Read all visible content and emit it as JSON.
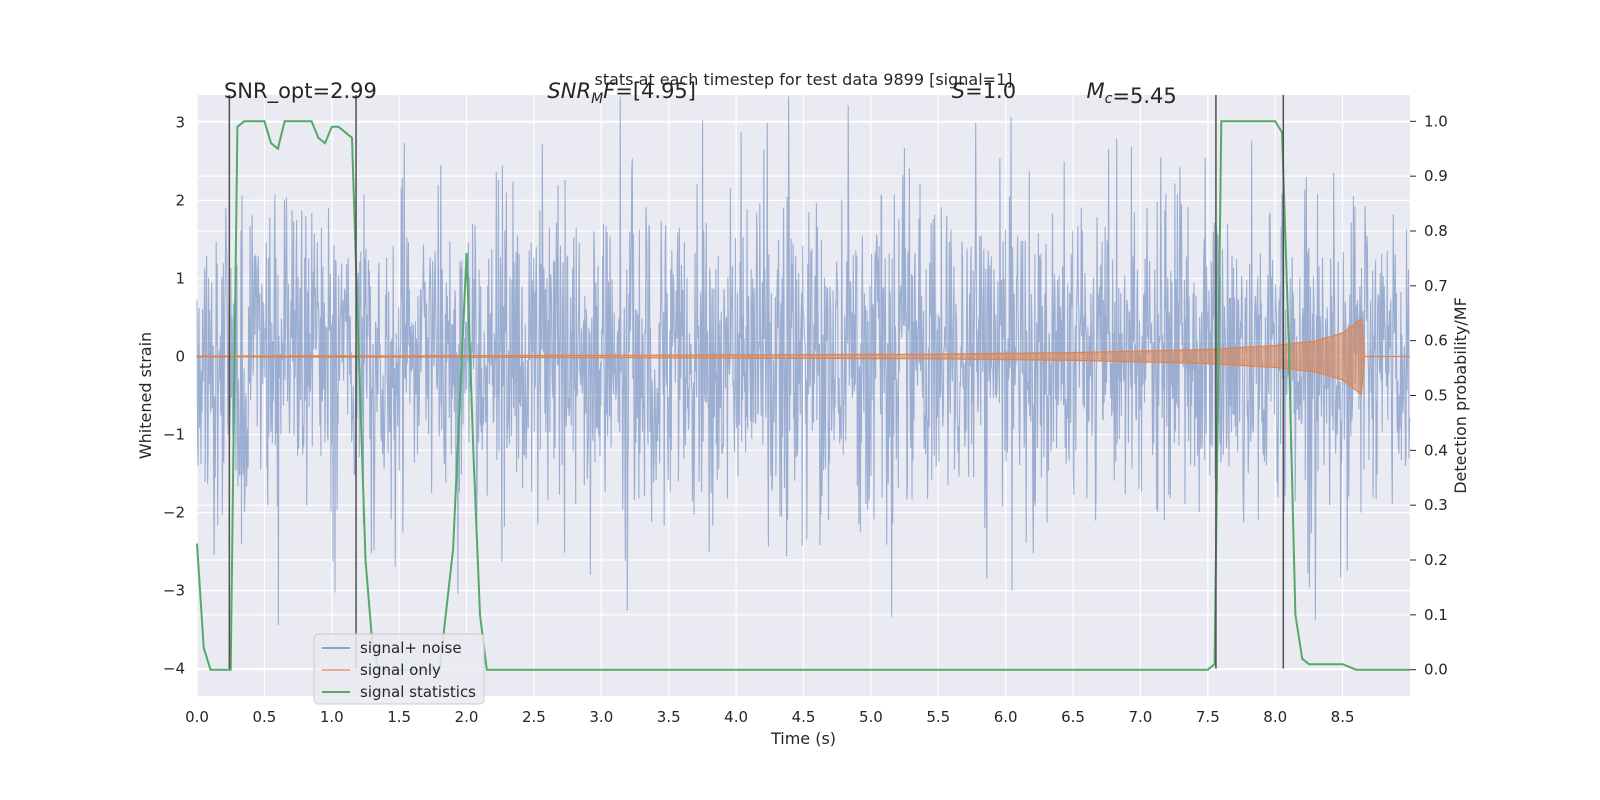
{
  "chart_data": {
    "type": "line",
    "title": "stats at each timestep for test data 9899 [signal=1]",
    "xlabel": "Time (s)",
    "ylabel": "Whitened strain",
    "y2label": "Detection probability/MF",
    "xlim": [
      0.0,
      9.0
    ],
    "ylim": [
      -4.35,
      3.35
    ],
    "y2lim": [
      -0.048,
      1.048
    ],
    "x_ticks": [
      0.0,
      0.5,
      1.0,
      1.5,
      2.0,
      2.5,
      3.0,
      3.5,
      4.0,
      4.5,
      5.0,
      5.5,
      6.0,
      6.5,
      7.0,
      7.5,
      8.0,
      8.5
    ],
    "x_tick_labels": [
      "0.0",
      "0.5",
      "1.0",
      "1.5",
      "2.0",
      "2.5",
      "3.0",
      "3.5",
      "4.0",
      "4.5",
      "5.0",
      "5.5",
      "6.0",
      "6.5",
      "7.0",
      "7.5",
      "8.0",
      "8.5"
    ],
    "y_ticks": [
      -4,
      -3,
      -2,
      -1,
      0,
      1,
      2,
      3
    ],
    "y_tick_labels": [
      "−4",
      "−3",
      "−2",
      "−1",
      "0",
      "1",
      "2",
      "3"
    ],
    "y2_ticks": [
      0.0,
      0.1,
      0.2,
      0.3,
      0.4,
      0.5,
      0.6,
      0.7,
      0.8,
      0.9,
      1.0
    ],
    "y2_tick_labels": [
      "0.0",
      "0.1",
      "0.2",
      "0.3",
      "0.4",
      "0.5",
      "0.6",
      "0.7",
      "0.8",
      "0.9",
      "1.0"
    ],
    "grid": true,
    "legend_position": "lower-left",
    "annotations": [
      {
        "text": "SNR_opt=2.99",
        "x": 0.2,
        "y": 3.4
      },
      {
        "text": "SNR_MF=[4.95]",
        "x": 2.6,
        "y": 3.4
      },
      {
        "text": "S=1.0",
        "x": 5.6,
        "y": 3.4
      },
      {
        "text": "M_c=5.45",
        "x": 6.6,
        "y": 3.4
      }
    ],
    "vertical_markers": [
      {
        "x": 0.24,
        "y0": -4.0,
        "y1": 3.35
      },
      {
        "x": 1.18,
        "y0": -4.0,
        "y1": 3.35
      },
      {
        "x": 7.56,
        "y0": -4.0,
        "y1": 3.35
      },
      {
        "x": 8.06,
        "y0": -4.0,
        "y1": 3.35
      }
    ],
    "series": [
      {
        "name": "signal+ noise",
        "color": "#4c72b0",
        "noise_sigma": 1.0,
        "envelope": [
          {
            "x": 0.0,
            "y_low": -1.6,
            "y_high": 1.6
          },
          {
            "x": 9.0,
            "y_low": -1.6,
            "y_high": 1.6
          }
        ]
      },
      {
        "name": "signal only",
        "color": "#dd8452",
        "envelope": [
          {
            "x": 0.0,
            "amp": 0.005
          },
          {
            "x": 2.0,
            "amp": 0.01
          },
          {
            "x": 4.0,
            "amp": 0.02
          },
          {
            "x": 5.5,
            "amp": 0.03
          },
          {
            "x": 6.5,
            "amp": 0.05
          },
          {
            "x": 7.0,
            "amp": 0.07
          },
          {
            "x": 7.5,
            "amp": 0.09
          },
          {
            "x": 8.0,
            "amp": 0.14
          },
          {
            "x": 8.3,
            "amp": 0.2
          },
          {
            "x": 8.5,
            "amp": 0.3
          },
          {
            "x": 8.65,
            "amp": 0.5
          },
          {
            "x": 8.66,
            "amp": 0.0
          },
          {
            "x": 9.0,
            "amp": 0.0
          }
        ]
      },
      {
        "name": "signal statistics",
        "color": "#55a868",
        "axis": "right",
        "x": [
          0.0,
          0.05,
          0.1,
          0.15,
          0.2,
          0.25,
          0.3,
          0.35,
          0.4,
          0.45,
          0.5,
          0.55,
          0.6,
          0.65,
          0.7,
          0.75,
          0.8,
          0.85,
          0.9,
          0.95,
          1.0,
          1.05,
          1.1,
          1.15,
          1.2,
          1.25,
          1.3,
          1.35,
          1.4,
          1.5,
          1.6,
          1.7,
          1.8,
          1.9,
          2.0,
          2.05,
          2.1,
          2.15,
          2.2,
          3.0,
          4.0,
          5.0,
          6.0,
          7.0,
          7.5,
          7.55,
          7.6,
          7.65,
          7.7,
          8.0,
          8.05,
          8.1,
          8.15,
          8.2,
          8.25,
          8.3,
          8.35,
          8.4,
          8.45,
          8.5,
          8.6,
          8.7,
          8.8,
          8.9,
          9.0
        ],
        "y": [
          0.23,
          0.04,
          0.0,
          0.0,
          0.0,
          0.0,
          0.99,
          1.0,
          1.0,
          1.0,
          1.0,
          0.96,
          0.95,
          1.0,
          1.0,
          1.0,
          1.0,
          1.0,
          0.97,
          0.96,
          0.99,
          0.99,
          0.98,
          0.97,
          0.58,
          0.2,
          0.05,
          0.0,
          0.0,
          0.0,
          0.0,
          0.0,
          0.0,
          0.22,
          0.76,
          0.4,
          0.1,
          0.0,
          0.0,
          0.0,
          0.0,
          0.0,
          0.0,
          0.0,
          0.0,
          0.01,
          1.0,
          1.0,
          1.0,
          1.0,
          0.98,
          0.6,
          0.1,
          0.02,
          0.01,
          0.01,
          0.01,
          0.01,
          0.01,
          0.01,
          0.0,
          0.0,
          0.0,
          0.0,
          0.0
        ]
      }
    ]
  }
}
